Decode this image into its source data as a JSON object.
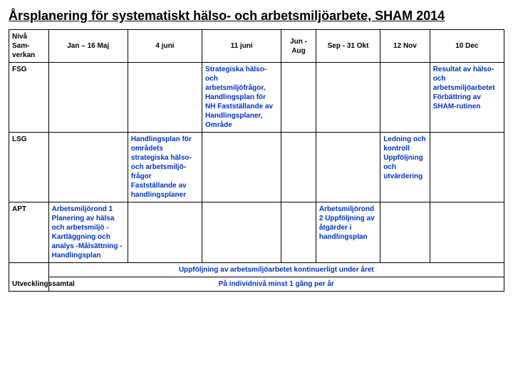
{
  "title": "Årsplanering för systematiskt hälso- och arbetsmiljöarbete, SHAM 2014",
  "headers": {
    "col0": "Nivå Sam-verkan",
    "col1": "Jan – 16 Maj",
    "col2": "4 juni",
    "col3": "11 juni",
    "col4": "Jun - Aug",
    "col5": "Sep - 31 Okt",
    "col6": "12 Nov",
    "col7": "10 Dec"
  },
  "rows": {
    "fsg": {
      "label": "FSG",
      "c3": "Strategiska hälso- och arbetsmiljöfrågor, Handlingsplan för NH Fastställande av Handlingsplaner, Område",
      "c7": "Resultat av hälso- och arbetsmiljöarbetet Förbättring av SHAM-rutinen"
    },
    "lsg": {
      "label": "LSG",
      "c2": "Handlingsplan för områdets strategiska hälso- och arbetsmiljö-frågor Fastställande av handlingsplaner",
      "c6": "Ledning och kontroll Uppföljning och utvärdering"
    },
    "apt": {
      "label": "APT",
      "c1": "Arbetsmiljörond 1 Planering av hälsa och arbetsmiljö -Kartläggning och analys -Målsättning -Handlingsplan",
      "c5": "Arbetsmiljörond 2 Uppföljning av åtgärder i handlingsplan"
    }
  },
  "footer": {
    "label": "Utvecklingssamtal",
    "text1": "Uppföljning av arbetsmiljöarbetet kontinuerligt under året",
    "text2": "På individnivå minst 1 gång per år"
  }
}
